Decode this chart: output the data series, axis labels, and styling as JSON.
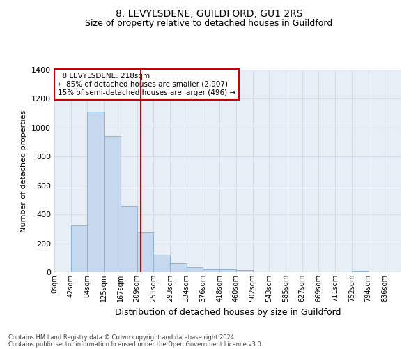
{
  "title": "8, LEVYLSDENE, GUILDFORD, GU1 2RS",
  "subtitle": "Size of property relative to detached houses in Guildford",
  "xlabel": "Distribution of detached houses by size in Guildford",
  "ylabel": "Number of detached properties",
  "footer_line1": "Contains HM Land Registry data © Crown copyright and database right 2024.",
  "footer_line2": "Contains public sector information licensed under the Open Government Licence v3.0.",
  "bin_labels": [
    "0sqm",
    "42sqm",
    "84sqm",
    "125sqm",
    "167sqm",
    "209sqm",
    "251sqm",
    "293sqm",
    "334sqm",
    "376sqm",
    "418sqm",
    "460sqm",
    "502sqm",
    "543sqm",
    "585sqm",
    "627sqm",
    "669sqm",
    "711sqm",
    "752sqm",
    "794sqm",
    "836sqm"
  ],
  "bar_values": [
    5,
    325,
    1110,
    940,
    460,
    275,
    120,
    65,
    35,
    20,
    20,
    15,
    0,
    0,
    0,
    0,
    0,
    0,
    10,
    0,
    0
  ],
  "bar_color": "#c5d8ee",
  "bar_edge_color": "#7bafd4",
  "vline_x_data": 5.21,
  "annotation_line1": "8 LEVYLSDENE: 218sqm",
  "annotation_line2": "← 85% of detached houses are smaller (2,907)",
  "annotation_line3": "15% of semi-detached houses are larger (496) →",
  "annotation_box_color": "#ffffff",
  "annotation_box_edge": "#cc0000",
  "vline_color": "#cc0000",
  "ylim": [
    0,
    1400
  ],
  "yticks": [
    0,
    200,
    400,
    600,
    800,
    1000,
    1200,
    1400
  ],
  "grid_color": "#d4dce8",
  "bg_color": "#e8eef5",
  "title_fontsize": 10,
  "subtitle_fontsize": 9,
  "ylabel_fontsize": 8,
  "xlabel_fontsize": 9
}
